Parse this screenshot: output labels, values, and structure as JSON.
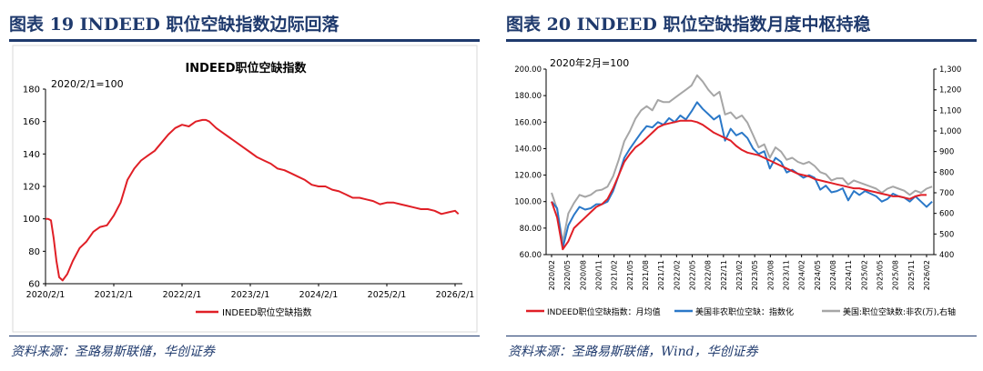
{
  "left": {
    "figure_title": "图表 19 INDEED 职位空缺指数边际回落",
    "source": "资料来源：圣路易斯联储，华创证券"
  },
  "right": {
    "figure_title": "图表 20 INDEED 职位空缺指数月度中枢持稳",
    "source": "资料来源：圣路易斯联储，Wind，华创证券"
  },
  "colors": {
    "title": "#1f3a6d",
    "red": "#e01f26",
    "blue": "#2a78c8",
    "gray": "#a6a6a6"
  },
  "chart_data": [
    {
      "type": "line",
      "title": "INDEED职位空缺指数",
      "annotation": "2020/2/1=100",
      "ylim": [
        60,
        180
      ],
      "yticks": [
        "60",
        "80",
        "100",
        "120",
        "140",
        "160",
        "180"
      ],
      "xticks": [
        "2020/2/1",
        "2021/2/1",
        "2022/2/1",
        "2023/2/1",
        "2024/2/1",
        "2025/2/1",
        "2026/2/1"
      ],
      "xrange": [
        2020.0,
        2026.0
      ],
      "series": [
        {
          "name": "INDEED职位空缺指数",
          "color": "#e01f26",
          "x": [
            2020.0,
            2020.04,
            2020.08,
            2020.12,
            2020.16,
            2020.2,
            2020.25,
            2020.32,
            2020.4,
            2020.5,
            2020.6,
            2020.7,
            2020.8,
            2020.9,
            2021.0,
            2021.1,
            2021.2,
            2021.3,
            2021.4,
            2021.5,
            2021.6,
            2021.7,
            2021.8,
            2021.9,
            2022.0,
            2022.1,
            2022.2,
            2022.3,
            2022.35,
            2022.4,
            2022.5,
            2022.6,
            2022.7,
            2022.8,
            2022.9,
            2023.0,
            2023.1,
            2023.2,
            2023.3,
            2023.4,
            2023.5,
            2023.6,
            2023.7,
            2023.8,
            2023.9,
            2024.0,
            2024.1,
            2024.2,
            2024.3,
            2024.4,
            2024.5,
            2024.6,
            2024.7,
            2024.8,
            2024.9,
            2025.0,
            2025.1,
            2025.2,
            2025.3,
            2025.4,
            2025.5,
            2025.6,
            2025.7,
            2025.8,
            2025.9,
            2026.0,
            2026.05
          ],
          "values": [
            100,
            100,
            99,
            88,
            74,
            64,
            62,
            66,
            74,
            82,
            86,
            92,
            95,
            96,
            102,
            110,
            124,
            131,
            136,
            139,
            142,
            147,
            152,
            156,
            158,
            157,
            160,
            161,
            161,
            160,
            156,
            153,
            150,
            147,
            144,
            141,
            138,
            136,
            134,
            131,
            130,
            128,
            126,
            124,
            121,
            120,
            120,
            118,
            117,
            115,
            113,
            113,
            112,
            111,
            109,
            110,
            110,
            109,
            108,
            107,
            106,
            106,
            105,
            103,
            104,
            105,
            103
          ]
        }
      ]
    },
    {
      "type": "line",
      "title": "",
      "annotation": "2020年2月=100",
      "ylim": [
        60,
        200
      ],
      "yticks": [
        "60.00",
        "80.00",
        "100.00",
        "120.00",
        "140.00",
        "160.00",
        "180.00",
        "200.00"
      ],
      "y2lim": [
        400,
        1300
      ],
      "y2ticks": [
        "400",
        "500",
        "600",
        "700",
        "800",
        "900",
        "1,000",
        "1,100",
        "1,200",
        "1,300"
      ],
      "xticks": [
        "2020/02",
        "2020/05",
        "2020/08",
        "2020/11",
        "2021/02",
        "2021/05",
        "2021/08",
        "2021/11",
        "2022/02",
        "2022/05",
        "2022/08",
        "2022/11",
        "2023/02",
        "2023/05",
        "2023/08",
        "2023/11",
        "2024/02",
        "2024/05",
        "2024/08",
        "2024/11",
        "2025/02",
        "2025/05",
        "2025/08",
        "2025/11",
        "2026/02"
      ],
      "series": [
        {
          "name": "INDEED职位空缺指数：月均值",
          "color": "#e01f26",
          "axis": "left",
          "values": [
            100,
            88,
            64,
            70,
            80,
            84,
            88,
            92,
            96,
            98,
            102,
            110,
            120,
            130,
            136,
            141,
            144,
            148,
            152,
            156,
            158,
            159,
            160,
            161,
            161,
            161,
            160,
            158,
            155,
            152,
            150,
            148,
            146,
            142,
            139,
            137,
            136,
            135,
            133,
            131,
            129,
            127,
            125,
            123,
            121,
            120,
            119,
            117,
            116,
            115,
            114,
            113,
            112,
            111,
            110,
            110,
            109,
            108,
            107,
            106,
            105,
            104,
            104,
            103,
            102,
            104,
            105,
            105
          ]
        },
        {
          "name": "美国非农职位空缺：指数化",
          "color": "#2a78c8",
          "axis": "left",
          "values": [
            100,
            95,
            65,
            82,
            90,
            96,
            94,
            95,
            98,
            98,
            100,
            108,
            120,
            133,
            140,
            146,
            152,
            157,
            156,
            160,
            158,
            163,
            160,
            165,
            162,
            168,
            175,
            170,
            166,
            162,
            165,
            146,
            155,
            150,
            152,
            148,
            140,
            136,
            138,
            125,
            133,
            130,
            122,
            124,
            121,
            118,
            120,
            118,
            109,
            112,
            107,
            108,
            110,
            101,
            108,
            105,
            108,
            106,
            104,
            100,
            102,
            106,
            104,
            103,
            100,
            104,
            100,
            96,
            100
          ]
        },
        {
          "name": "美国:职位空缺数:非农(万),右轴",
          "color": "#a6a6a6",
          "axis": "right",
          "values": [
            700,
            620,
            460,
            600,
            650,
            690,
            680,
            690,
            710,
            715,
            730,
            780,
            860,
            950,
            1000,
            1060,
            1100,
            1120,
            1100,
            1150,
            1140,
            1140,
            1160,
            1180,
            1200,
            1220,
            1270,
            1240,
            1200,
            1170,
            1190,
            1080,
            1090,
            1060,
            1075,
            1040,
            980,
            920,
            935,
            870,
            920,
            900,
            860,
            870,
            850,
            840,
            850,
            830,
            800,
            790,
            760,
            770,
            770,
            740,
            760,
            750,
            740,
            730,
            720,
            700,
            720,
            730,
            720,
            710,
            690,
            710,
            700,
            720,
            730
          ]
        }
      ]
    }
  ]
}
